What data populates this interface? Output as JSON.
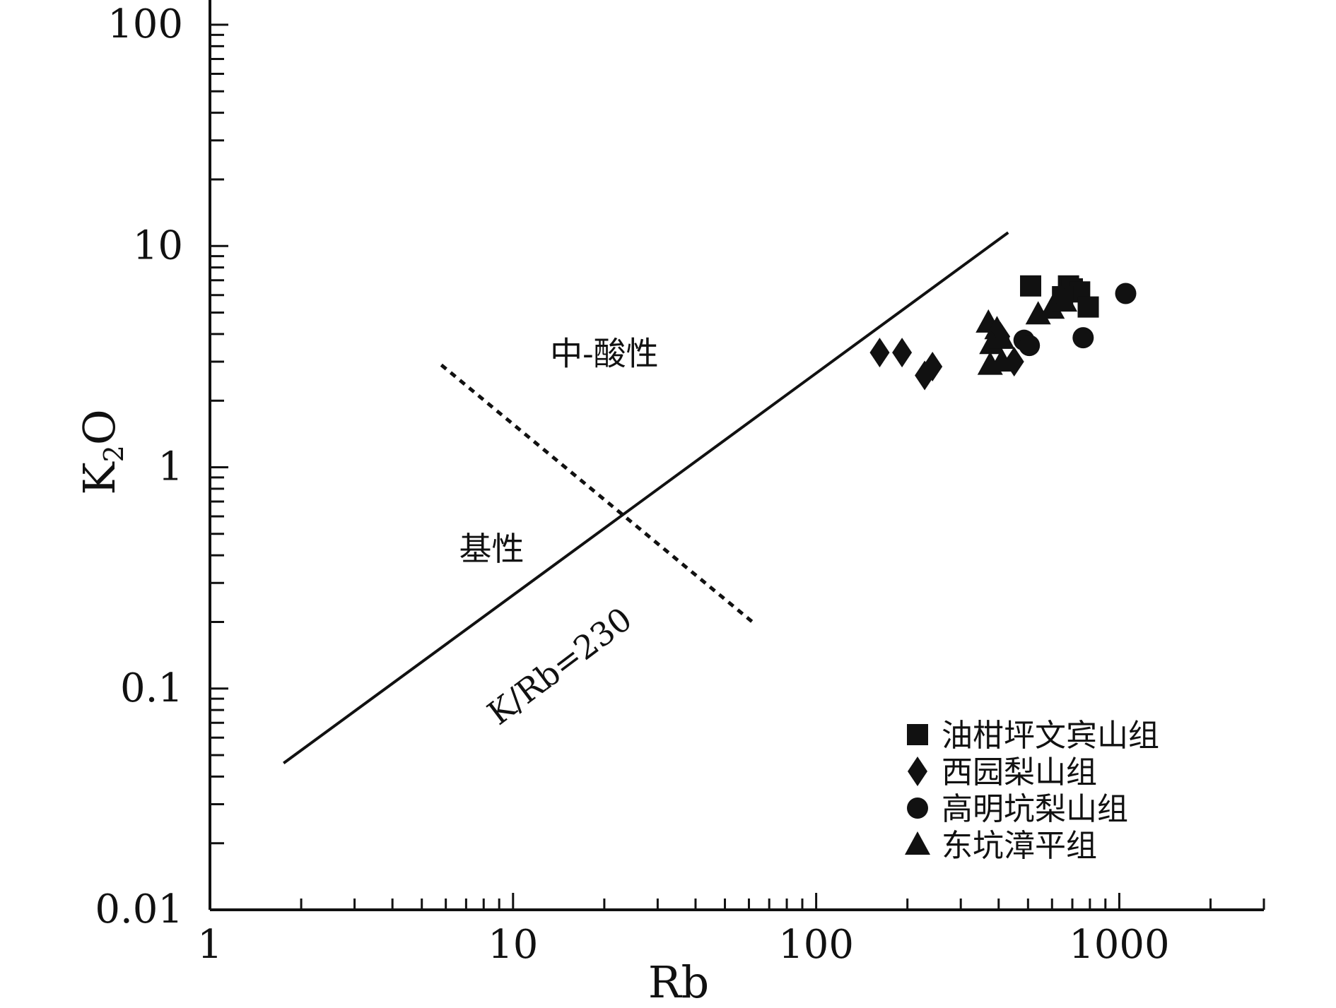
{
  "chart_data": {
    "type": "scatter",
    "xscale": "log",
    "yscale": "log",
    "xlim": [
      1,
      3000
    ],
    "ylim": [
      0.01,
      100
    ],
    "xlabel": "Rb",
    "ylabel_main": "K",
    "ylabel_sub": "2",
    "ylabel_tail": "O",
    "x_ticks": [
      {
        "value": 1,
        "label": "1"
      },
      {
        "value": 10,
        "label": "10"
      },
      {
        "value": 100,
        "label": "100"
      },
      {
        "value": 1000,
        "label": "1000"
      }
    ],
    "y_ticks": [
      {
        "value": 0.01,
        "label": "0.01"
      },
      {
        "value": 0.1,
        "label": "0.1"
      },
      {
        "value": 1,
        "label": "1"
      },
      {
        "value": 10,
        "label": "10"
      },
      {
        "value": 100,
        "label": "100"
      }
    ],
    "grid": false,
    "legend_position": "bottom-right",
    "reference_lines": [
      {
        "label": "K/Rb=230",
        "style": "solid",
        "x": [
          1.75,
          430
        ],
        "y": [
          0.046,
          11.5
        ]
      },
      {
        "label": "",
        "style": "dashed",
        "x": [
          5.8,
          63
        ],
        "y": [
          2.9,
          0.195
        ]
      }
    ],
    "annotations": [
      {
        "text": "中-酸性",
        "x": 20,
        "y": 2.9
      },
      {
        "text": "基性",
        "x": 8.5,
        "y": 0.38
      },
      {
        "text": "K/Rb=230",
        "x": 15,
        "y": 0.115,
        "rotation": -37
      }
    ],
    "series": [
      {
        "name": "油柑坪文宾山组",
        "marker": "square",
        "points": [
          {
            "x": 510,
            "y": 6.6
          },
          {
            "x": 680,
            "y": 6.6
          },
          {
            "x": 700,
            "y": 6.4
          },
          {
            "x": 740,
            "y": 6.2
          },
          {
            "x": 790,
            "y": 5.3
          },
          {
            "x": 650,
            "y": 5.9
          }
        ]
      },
      {
        "name": "西园梨山组",
        "marker": "diamond",
        "points": [
          {
            "x": 162,
            "y": 3.3
          },
          {
            "x": 192,
            "y": 3.3
          },
          {
            "x": 228,
            "y": 2.6
          },
          {
            "x": 242,
            "y": 2.85
          },
          {
            "x": 405,
            "y": 3.9
          },
          {
            "x": 450,
            "y": 3.0
          }
        ]
      },
      {
        "name": "高明坑梨山组",
        "marker": "circle",
        "points": [
          {
            "x": 485,
            "y": 3.75
          },
          {
            "x": 505,
            "y": 3.55
          },
          {
            "x": 760,
            "y": 3.85
          },
          {
            "x": 1050,
            "y": 6.1
          }
        ]
      },
      {
        "name": "东坑漳平组",
        "marker": "triangle",
        "points": [
          {
            "x": 370,
            "y": 4.5
          },
          {
            "x": 395,
            "y": 4.2
          },
          {
            "x": 380,
            "y": 3.6
          },
          {
            "x": 375,
            "y": 2.9
          },
          {
            "x": 410,
            "y": 3.0
          },
          {
            "x": 540,
            "y": 4.9
          },
          {
            "x": 600,
            "y": 5.2
          },
          {
            "x": 660,
            "y": 5.6
          },
          {
            "x": 410,
            "y": 3.8
          }
        ]
      }
    ]
  }
}
